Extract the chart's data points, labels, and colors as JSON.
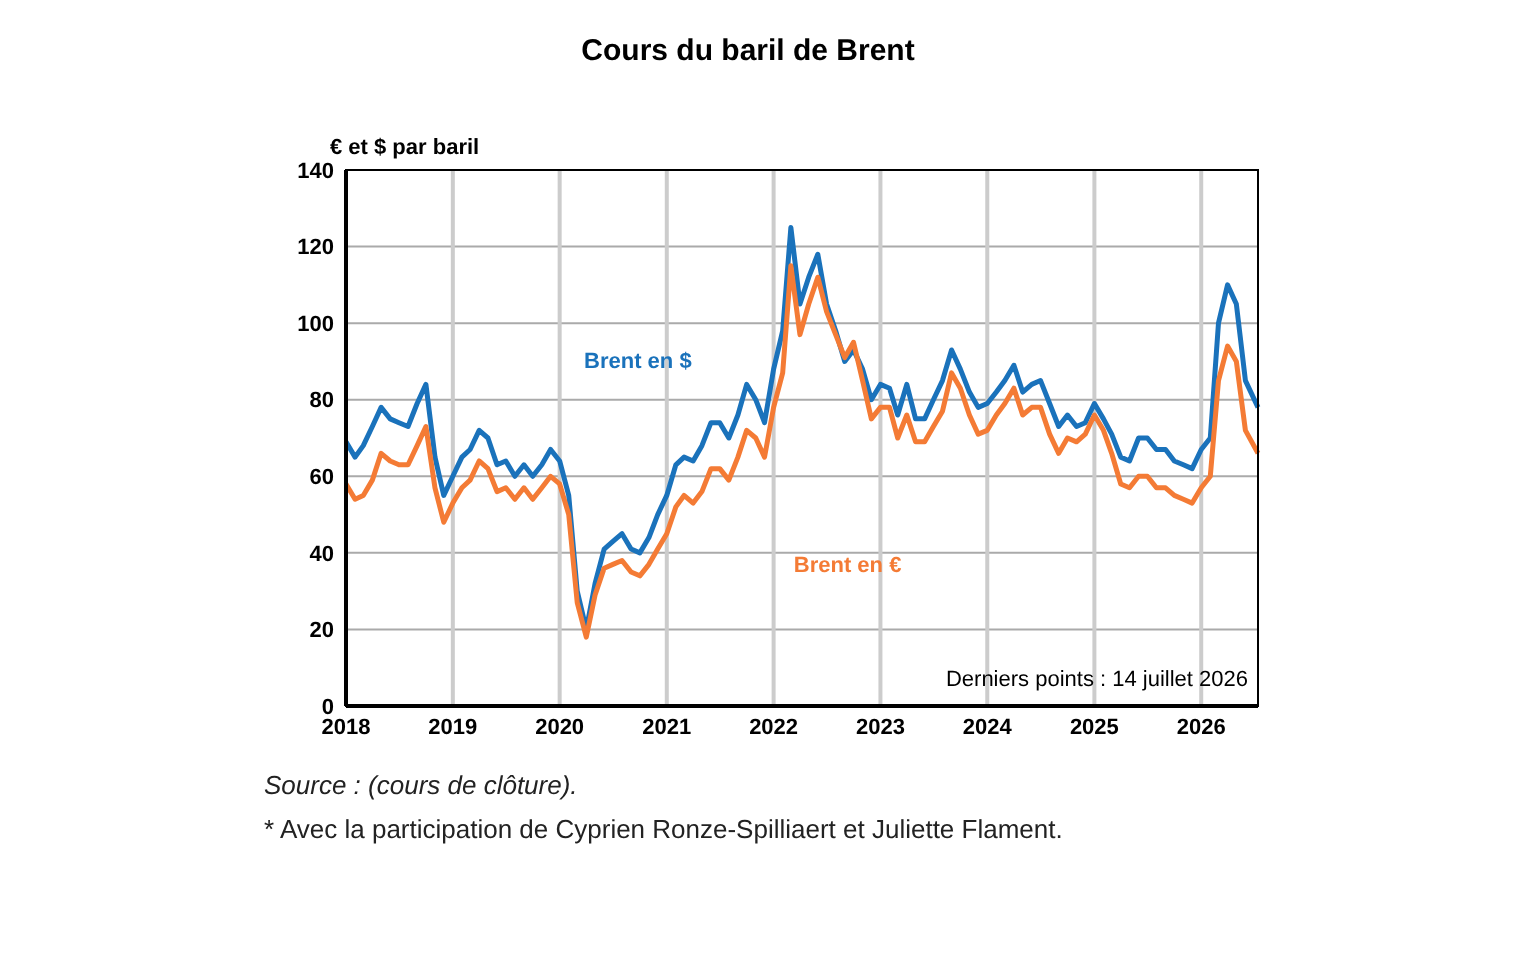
{
  "chart_data": {
    "type": "line",
    "title": "Cours du baril de Brent",
    "ylabel": "€ et $ par baril",
    "x": [
      "2018-01",
      "2018-02",
      "2018-03",
      "2018-04",
      "2018-05",
      "2018-06",
      "2018-07",
      "2018-08",
      "2018-09",
      "2018-10",
      "2018-11",
      "2018-12",
      "2019-01",
      "2019-02",
      "2019-03",
      "2019-04",
      "2019-05",
      "2019-06",
      "2019-07",
      "2019-08",
      "2019-09",
      "2019-10",
      "2019-11",
      "2019-12",
      "2020-01",
      "2020-02",
      "2020-03",
      "2020-04",
      "2020-05",
      "2020-06",
      "2020-07",
      "2020-08",
      "2020-09",
      "2020-10",
      "2020-11",
      "2020-12",
      "2021-01",
      "2021-02",
      "2021-03",
      "2021-04",
      "2021-05",
      "2021-06",
      "2021-07",
      "2021-08",
      "2021-09",
      "2021-10",
      "2021-11",
      "2021-12",
      "2022-01",
      "2022-02",
      "2022-03",
      "2022-04",
      "2022-05",
      "2022-06",
      "2022-07",
      "2022-08",
      "2022-09",
      "2022-10",
      "2022-11",
      "2022-12",
      "2023-01",
      "2023-02",
      "2023-03",
      "2023-04",
      "2023-05",
      "2023-06",
      "2023-07",
      "2023-08",
      "2023-09",
      "2023-10",
      "2023-11",
      "2023-12",
      "2024-01",
      "2024-02",
      "2024-03",
      "2024-04",
      "2024-05",
      "2024-06",
      "2024-07",
      "2024-08",
      "2024-09",
      "2024-10",
      "2024-11",
      "2024-12",
      "2025-01",
      "2025-02",
      "2025-03",
      "2025-04",
      "2025-05",
      "2025-06",
      "2025-07",
      "2025-08",
      "2025-09",
      "2025-10",
      "2025-11",
      "2025-12",
      "2026-01",
      "2026-02",
      "2026-03",
      "2026-04",
      "2026-05",
      "2026-06",
      "2026-07-14"
    ],
    "series": [
      {
        "name": "Brent en $",
        "color": "#1a72bb",
        "values": [
          69,
          65,
          68,
          73,
          78,
          75,
          74,
          73,
          79,
          84,
          65,
          55,
          60,
          65,
          67,
          72,
          70,
          63,
          64,
          60,
          63,
          60,
          63,
          67,
          64,
          55,
          30,
          20,
          32,
          41,
          43,
          45,
          41,
          40,
          44,
          50,
          55,
          63,
          65,
          64,
          68,
          74,
          74,
          70,
          76,
          84,
          80,
          74,
          88,
          98,
          125,
          105,
          112,
          118,
          105,
          98,
          90,
          93,
          88,
          80,
          84,
          83,
          76,
          84,
          75,
          75,
          80,
          85,
          93,
          88,
          82,
          78,
          79,
          82,
          85,
          89,
          82,
          84,
          85,
          79,
          73,
          76,
          73,
          74,
          79,
          75,
          71,
          65,
          64,
          70,
          70,
          67,
          67,
          64,
          63,
          62,
          67,
          70,
          100,
          110,
          105,
          85,
          78
        ]
      },
      {
        "name": "Brent en €",
        "color": "#f47b35",
        "values": [
          58,
          54,
          55,
          59,
          66,
          64,
          63,
          63,
          68,
          73,
          57,
          48,
          53,
          57,
          59,
          64,
          62,
          56,
          57,
          54,
          57,
          54,
          57,
          60,
          58,
          50,
          27,
          18,
          29,
          36,
          37,
          38,
          35,
          34,
          37,
          41,
          45,
          52,
          55,
          53,
          56,
          62,
          62,
          59,
          65,
          72,
          70,
          65,
          78,
          87,
          115,
          97,
          105,
          112,
          103,
          97,
          91,
          95,
          85,
          75,
          78,
          78,
          70,
          76,
          69,
          69,
          73,
          77,
          87,
          83,
          76,
          71,
          72,
          76,
          79,
          83,
          76,
          78,
          78,
          71,
          66,
          70,
          69,
          71,
          76,
          72,
          66,
          58,
          57,
          60,
          60,
          57,
          57,
          55,
          54,
          53,
          57,
          60,
          85,
          94,
          90,
          72,
          66
        ]
      }
    ],
    "xlim": [
      "2018-01-01",
      "2026-07-14"
    ],
    "xticks": [
      "2018",
      "2019",
      "2020",
      "2021",
      "2022",
      "2023",
      "2024",
      "2025",
      "2026"
    ],
    "ylim": [
      0,
      140
    ],
    "yticks": [
      0,
      20,
      40,
      60,
      80,
      100,
      120,
      140
    ],
    "grid": true,
    "annotations": [
      "Derniers points : 14 juillet 2026",
      "Source : (cours de clôture).",
      "* Avec la participation de Cyprien Ronze-Spilliaert et Juliette Flament."
    ]
  }
}
